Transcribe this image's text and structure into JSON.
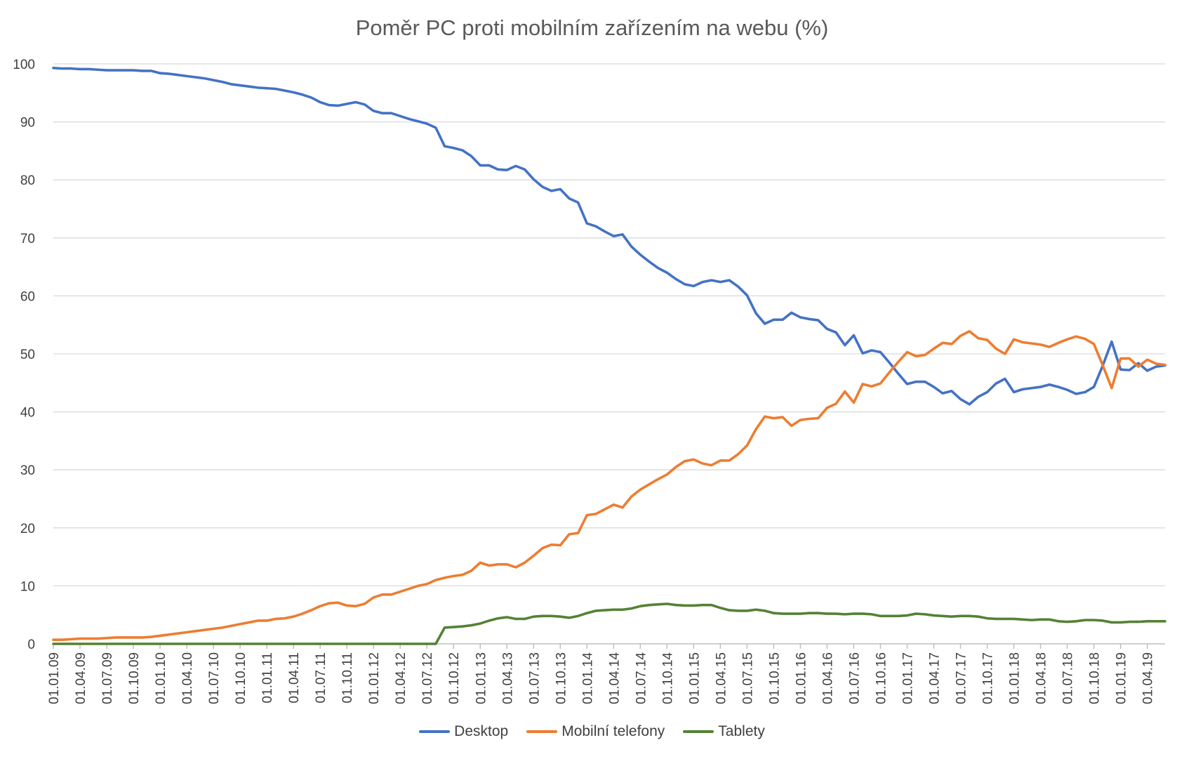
{
  "chart_data": {
    "type": "line",
    "title": "Poměr PC proti mobilním zařízením na webu (%)",
    "xlabel": "",
    "ylabel": "",
    "ylim": [
      0,
      100
    ],
    "y_ticks": [
      0,
      10,
      20,
      30,
      40,
      50,
      60,
      70,
      80,
      90,
      100
    ],
    "grid": "horizontal",
    "legend_position": "bottom",
    "x": [
      "01.01.09",
      "01.02.09",
      "01.03.09",
      "01.04.09",
      "01.05.09",
      "01.06.09",
      "01.07.09",
      "01.08.09",
      "01.09.09",
      "01.10.09",
      "01.11.09",
      "01.12.09",
      "01.01.10",
      "01.02.10",
      "01.03.10",
      "01.04.10",
      "01.05.10",
      "01.06.10",
      "01.07.10",
      "01.08.10",
      "01.09.10",
      "01.10.10",
      "01.11.10",
      "01.12.10",
      "01.01.11",
      "01.02.11",
      "01.03.11",
      "01.04.11",
      "01.05.11",
      "01.06.11",
      "01.07.11",
      "01.08.11",
      "01.09.11",
      "01.10.11",
      "01.11.11",
      "01.12.11",
      "01.01.12",
      "01.02.12",
      "01.03.12",
      "01.04.12",
      "01.05.12",
      "01.06.12",
      "01.07.12",
      "01.08.12",
      "01.09.12",
      "01.10.12",
      "01.11.12",
      "01.12.12",
      "01.01.13",
      "01.02.13",
      "01.03.13",
      "01.04.13",
      "01.05.13",
      "01.06.13",
      "01.07.13",
      "01.08.13",
      "01.09.13",
      "01.10.13",
      "01.11.13",
      "01.12.13",
      "01.01.14",
      "01.02.14",
      "01.03.14",
      "01.04.14",
      "01.05.14",
      "01.06.14",
      "01.07.14",
      "01.08.14",
      "01.09.14",
      "01.10.14",
      "01.11.14",
      "01.12.14",
      "01.01.15",
      "01.02.15",
      "01.03.15",
      "01.04.15",
      "01.05.15",
      "01.06.15",
      "01.07.15",
      "01.08.15",
      "01.09.15",
      "01.10.15",
      "01.11.15",
      "01.12.15",
      "01.01.16",
      "01.02.16",
      "01.03.16",
      "01.04.16",
      "01.05.16",
      "01.06.16",
      "01.07.16",
      "01.08.16",
      "01.09.16",
      "01.10.16",
      "01.11.16",
      "01.12.16",
      "01.01.17",
      "01.02.17",
      "01.03.17",
      "01.04.17",
      "01.05.17",
      "01.06.17",
      "01.07.17",
      "01.08.17",
      "01.09.17",
      "01.10.17",
      "01.11.17",
      "01.12.17",
      "01.01.18",
      "01.02.18",
      "01.03.18",
      "01.04.18",
      "01.05.18",
      "01.06.18",
      "01.07.18",
      "01.08.18",
      "01.09.18",
      "01.10.18",
      "01.11.18",
      "01.12.18",
      "01.01.19",
      "01.02.19",
      "01.03.19",
      "01.04.19",
      "01.05.19",
      "01.06.19"
    ],
    "x_tick_labels": [
      "01.01.09",
      "01.04.09",
      "01.07.09",
      "01.10.09",
      "01.01.10",
      "01.04.10",
      "01.07.10",
      "01.10.10",
      "01.01.11",
      "01.04.11",
      "01.07.11",
      "01.10.11",
      "01.01.12",
      "01.04.12",
      "01.07.12",
      "01.10.12",
      "01.01.13",
      "01.04.13",
      "01.07.13",
      "01.10.13",
      "01.01.14",
      "01.04.14",
      "01.07.14",
      "01.10.14",
      "01.01.15",
      "01.04.15",
      "01.07.15",
      "01.10.15",
      "01.01.16",
      "01.04.16",
      "01.07.16",
      "01.10.16",
      "01.01.17",
      "01.04.17",
      "01.07.17",
      "01.10.17",
      "01.01.18",
      "01.04.18",
      "01.07.18",
      "01.10.18",
      "01.01.19",
      "01.04.19"
    ],
    "series": [
      {
        "name": "Desktop",
        "color": "#4472C4",
        "values": [
          99.3,
          99.2,
          99.2,
          99.1,
          99.1,
          99.0,
          98.9,
          98.9,
          98.9,
          98.9,
          98.8,
          98.8,
          98.4,
          98.3,
          98.1,
          97.9,
          97.7,
          97.5,
          97.2,
          96.9,
          96.5,
          96.3,
          96.1,
          95.9,
          95.8,
          95.7,
          95.4,
          95.1,
          94.7,
          94.2,
          93.4,
          92.9,
          92.8,
          93.1,
          93.4,
          93.0,
          91.9,
          91.5,
          91.5,
          91.0,
          90.5,
          90.1,
          89.7,
          89.0,
          85.8,
          85.5,
          85.1,
          84.1,
          82.5,
          82.5,
          81.8,
          81.7,
          82.4,
          81.8,
          80.1,
          78.8,
          78.1,
          78.4,
          76.8,
          76.1,
          72.5,
          72.0,
          71.1,
          70.3,
          70.6,
          68.5,
          67.1,
          65.9,
          64.8,
          64.0,
          62.9,
          62.0,
          61.7,
          62.4,
          62.7,
          62.4,
          62.7,
          61.6,
          60.1,
          57.0,
          55.2,
          55.9,
          55.9,
          57.1,
          56.3,
          56.0,
          55.8,
          54.3,
          53.7,
          51.5,
          53.2,
          50.1,
          50.6,
          50.3,
          48.5,
          46.6,
          44.8,
          45.2,
          45.2,
          44.3,
          43.2,
          43.6,
          42.2,
          41.3,
          42.6,
          43.4,
          44.9,
          45.7,
          43.4,
          43.9,
          44.1,
          44.3,
          44.7,
          44.3,
          43.8,
          43.1,
          43.4,
          44.3,
          48.0,
          52.1,
          47.3,
          47.2,
          48.4,
          47.1,
          47.8,
          48.0
        ]
      },
      {
        "name": "Mobilní telefony",
        "color": "#ED7D31",
        "values": [
          0.7,
          0.7,
          0.8,
          0.9,
          0.9,
          0.9,
          1.0,
          1.1,
          1.1,
          1.1,
          1.1,
          1.2,
          1.4,
          1.6,
          1.8,
          2.0,
          2.2,
          2.4,
          2.6,
          2.8,
          3.1,
          3.4,
          3.7,
          4.0,
          4.0,
          4.3,
          4.4,
          4.7,
          5.2,
          5.8,
          6.5,
          7.0,
          7.1,
          6.6,
          6.5,
          6.9,
          8.0,
          8.5,
          8.5,
          9.0,
          9.5,
          10.0,
          10.3,
          11.0,
          11.4,
          11.7,
          11.9,
          12.6,
          14.0,
          13.5,
          13.7,
          13.7,
          13.2,
          14.0,
          15.2,
          16.5,
          17.1,
          17.0,
          18.9,
          19.1,
          22.2,
          22.4,
          23.2,
          24.0,
          23.5,
          25.4,
          26.6,
          27.5,
          28.4,
          29.2,
          30.5,
          31.5,
          31.8,
          31.1,
          30.8,
          31.6,
          31.6,
          32.7,
          34.2,
          37.0,
          39.2,
          38.9,
          39.1,
          37.6,
          38.6,
          38.8,
          38.9,
          40.7,
          41.4,
          43.5,
          41.6,
          44.8,
          44.4,
          44.9,
          46.8,
          48.6,
          50.3,
          49.6,
          49.8,
          50.9,
          51.9,
          51.7,
          53.1,
          53.9,
          52.7,
          52.4,
          50.9,
          50.0,
          52.5,
          52.0,
          51.8,
          51.6,
          51.2,
          51.9,
          52.5,
          53.0,
          52.6,
          51.7,
          48.0,
          44.1,
          49.2,
          49.2,
          47.8,
          49.0,
          48.3,
          48.1
        ]
      },
      {
        "name": "Tablety",
        "color": "#548235",
        "values": [
          0,
          0,
          0,
          0,
          0,
          0,
          0,
          0,
          0,
          0,
          0,
          0,
          0,
          0,
          0,
          0,
          0,
          0,
          0,
          0,
          0,
          0,
          0,
          0,
          0,
          0,
          0,
          0,
          0,
          0,
          0,
          0,
          0,
          0,
          0,
          0,
          0,
          0,
          0,
          0,
          0,
          0,
          0,
          0,
          2.8,
          2.9,
          3.0,
          3.2,
          3.5,
          4.0,
          4.4,
          4.6,
          4.3,
          4.3,
          4.7,
          4.8,
          4.8,
          4.7,
          4.5,
          4.8,
          5.3,
          5.7,
          5.8,
          5.9,
          5.9,
          6.1,
          6.5,
          6.7,
          6.8,
          6.9,
          6.7,
          6.6,
          6.6,
          6.7,
          6.7,
          6.2,
          5.8,
          5.7,
          5.7,
          5.9,
          5.7,
          5.3,
          5.2,
          5.2,
          5.2,
          5.3,
          5.3,
          5.2,
          5.2,
          5.1,
          5.2,
          5.2,
          5.1,
          4.8,
          4.8,
          4.8,
          4.9,
          5.2,
          5.1,
          4.9,
          4.8,
          4.7,
          4.8,
          4.8,
          4.7,
          4.4,
          4.3,
          4.3,
          4.3,
          4.2,
          4.1,
          4.2,
          4.2,
          3.9,
          3.8,
          3.9,
          4.1,
          4.1,
          4.0,
          3.7,
          3.7,
          3.8,
          3.8,
          3.9,
          3.9,
          3.9
        ]
      }
    ]
  }
}
